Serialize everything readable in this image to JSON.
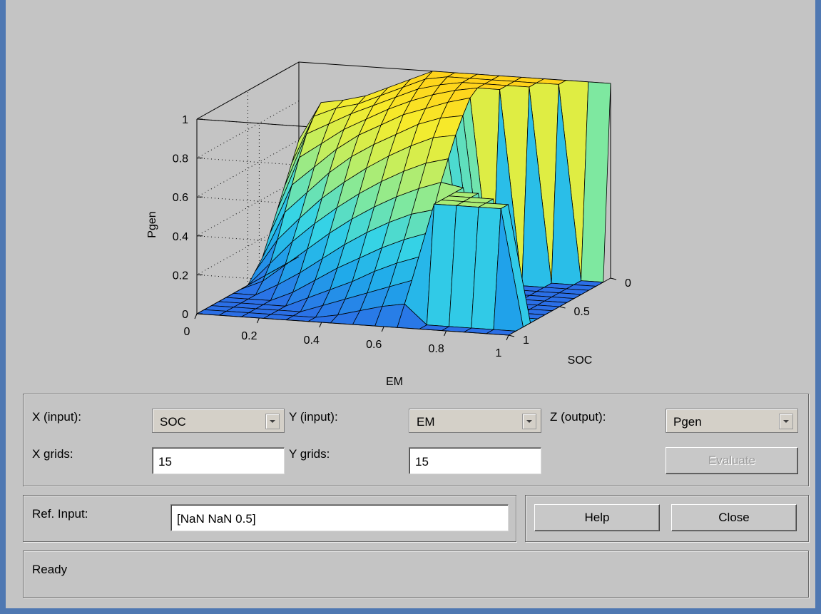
{
  "chart_data": {
    "type": "surface",
    "title": "",
    "xlabel": "SOC",
    "ylabel": "EM",
    "zlabel": "Pgen",
    "xlim": [
      0,
      1
    ],
    "ylim": [
      0,
      1
    ],
    "zlim": [
      0,
      1
    ],
    "x_ticks": [
      "0",
      "0.5",
      "1"
    ],
    "y_ticks": [
      "0",
      "0.2",
      "0.4",
      "0.6",
      "0.8",
      "1"
    ],
    "z_ticks": [
      "0",
      "0.2",
      "0.4",
      "0.6",
      "0.8",
      "1"
    ],
    "grid": true,
    "x_grid_points": 15,
    "y_grid_points": 15,
    "x": [
      0,
      0.0714,
      0.1429,
      0.2143,
      0.2857,
      0.3571,
      0.4286,
      0.5,
      0.5714,
      0.6429,
      0.7143,
      0.7857,
      0.8571,
      0.9286,
      1
    ],
    "y": [
      0,
      0.0714,
      0.1429,
      0.2143,
      0.2857,
      0.3571,
      0.4286,
      0.5,
      0.5714,
      0.6429,
      0.7143,
      0.7857,
      0.8571,
      0.9286,
      1
    ],
    "z_rows_by_soc": [
      [
        0.6,
        0.8,
        0.82,
        0.85,
        0.9,
        0.95,
        1.0,
        1.0,
        1.0,
        1.0,
        1.0,
        1.0,
        1.0,
        1.0,
        1.0
      ],
      [
        0.5,
        0.75,
        0.8,
        0.83,
        0.88,
        0.93,
        0.98,
        1.0,
        1.0,
        1.0,
        1.0,
        1.0,
        1.0,
        0.0,
        0.0
      ],
      [
        0.4,
        0.68,
        0.74,
        0.8,
        0.85,
        0.9,
        0.95,
        0.98,
        1.0,
        1.0,
        1.0,
        1.0,
        0.0,
        0.0,
        0.0
      ],
      [
        0.3,
        0.58,
        0.66,
        0.74,
        0.8,
        0.86,
        0.91,
        0.95,
        0.98,
        1.0,
        1.0,
        0.0,
        0.0,
        0.0,
        0.0
      ],
      [
        0.2,
        0.46,
        0.56,
        0.66,
        0.74,
        0.8,
        0.86,
        0.9,
        0.94,
        0.97,
        0.0,
        0.0,
        0.0,
        0.0,
        0.0
      ],
      [
        0.1,
        0.34,
        0.45,
        0.56,
        0.65,
        0.72,
        0.78,
        0.84,
        0.88,
        0.9,
        0.0,
        0.0,
        0.0,
        0.0,
        0.0
      ],
      [
        0.05,
        0.22,
        0.34,
        0.45,
        0.54,
        0.62,
        0.69,
        0.75,
        0.8,
        0.82,
        0.0,
        0.0,
        0.0,
        0.0,
        0.0
      ],
      [
        0.0,
        0.12,
        0.24,
        0.34,
        0.43,
        0.51,
        0.58,
        0.64,
        0.69,
        0.72,
        0.0,
        0.0,
        0.0,
        0.0,
        0.0
      ],
      [
        0.0,
        0.05,
        0.14,
        0.23,
        0.32,
        0.4,
        0.47,
        0.53,
        0.58,
        0.62,
        0.6,
        0.0,
        0.0,
        0.0,
        0.0
      ],
      [
        0.0,
        0.0,
        0.06,
        0.13,
        0.21,
        0.29,
        0.36,
        0.42,
        0.47,
        0.5,
        0.6,
        0.6,
        0.0,
        0.0,
        0.0
      ],
      [
        0.0,
        0.0,
        0.0,
        0.05,
        0.12,
        0.19,
        0.25,
        0.31,
        0.36,
        0.4,
        0.6,
        0.6,
        0.6,
        0.0,
        0.0
      ],
      [
        0.0,
        0.0,
        0.0,
        0.0,
        0.05,
        0.1,
        0.15,
        0.21,
        0.26,
        0.3,
        0.6,
        0.6,
        0.6,
        0.6,
        0.0
      ],
      [
        0.0,
        0.0,
        0.0,
        0.0,
        0.0,
        0.04,
        0.08,
        0.12,
        0.16,
        0.2,
        0.6,
        0.6,
        0.6,
        0.6,
        0.0
      ],
      [
        0.0,
        0.0,
        0.0,
        0.0,
        0.0,
        0.0,
        0.02,
        0.05,
        0.08,
        0.1,
        0.0,
        0.0,
        0.0,
        0.0,
        0.0
      ],
      [
        0.0,
        0.0,
        0.0,
        0.0,
        0.0,
        0.0,
        0.0,
        0.0,
        0.0,
        0.0,
        0.0,
        0.0,
        0.0,
        0.0,
        0.0
      ]
    ],
    "colormap": [
      "#2b6fe6",
      "#1fa8ea",
      "#35d3e6",
      "#7ee8a0",
      "#c8ee5a",
      "#f6ec2c",
      "#ffd21a"
    ]
  },
  "controls": {
    "x_input_label": "X (input):",
    "x_input_value": "SOC",
    "y_input_label": "Y (input):",
    "y_input_value": "EM",
    "z_output_label": "Z (output):",
    "z_output_value": "Pgen",
    "x_grids_label": "X grids:",
    "x_grids_value": "15",
    "y_grids_label": "Y grids:",
    "y_grids_value": "15",
    "evaluate_label": "Evaluate"
  },
  "reference": {
    "ref_input_label": "Ref. Input:",
    "ref_input_value": "[NaN NaN 0.5]"
  },
  "buttons": {
    "help_label": "Help",
    "close_label": "Close"
  },
  "status": {
    "text": "Ready"
  }
}
